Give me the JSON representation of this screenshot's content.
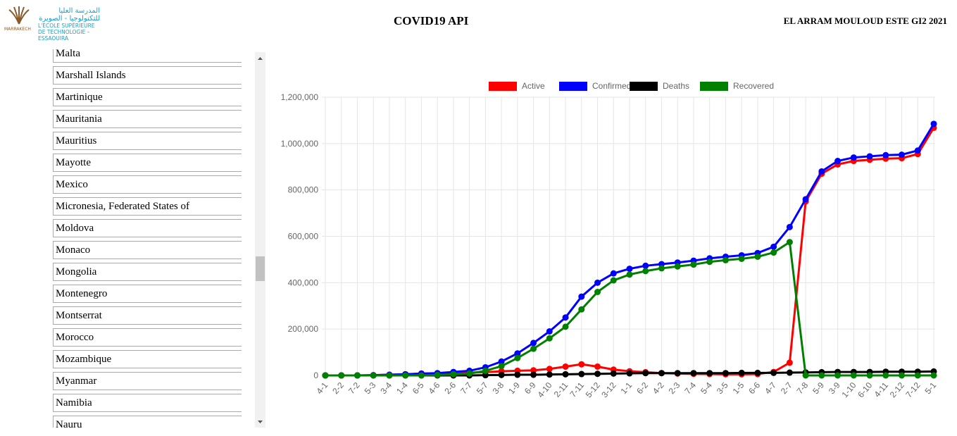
{
  "header": {
    "logo_arabic": "المدرسة العليا للتكنولوجيا - الصويرة",
    "logo_city": "MARRAKECH",
    "logo_school": "L'ÉCOLE SUPÉRIEURE DE TECHNOLOGIE – ESSAOUIRA",
    "title": "COVID19 API",
    "author": "EL ARRAM MOULOUD ESTE GI2 2021"
  },
  "sidebar": {
    "countries": [
      "Malta",
      "Marshall Islands",
      "Martinique",
      "Mauritania",
      "Mauritius",
      "Mayotte",
      "Mexico",
      "Micronesia, Federated States of",
      "Moldova",
      "Monaco",
      "Mongolia",
      "Montenegro",
      "Montserrat",
      "Morocco",
      "Mozambique",
      "Myanmar",
      "Namibia",
      "Nauru"
    ]
  },
  "chart_data": {
    "type": "line",
    "categories": [
      "4-1",
      "2-2",
      "7-2",
      "5-3",
      "3-4",
      "1-4",
      "6-5",
      "4-6",
      "2-6",
      "7-7",
      "5-7",
      "3-8",
      "1-9",
      "6-9",
      "4-10",
      "2-11",
      "7-11",
      "5-12",
      "3-12",
      "1-1",
      "6-2",
      "4-2",
      "2-3",
      "7-4",
      "5-4",
      "3-5",
      "1-5",
      "6-6",
      "4-7",
      "2-7",
      "7-8",
      "5-9",
      "3-9",
      "1-10",
      "6-10",
      "4-11",
      "2-12",
      "7-12",
      "5-1"
    ],
    "series": [
      {
        "name": "Active",
        "color": "#ff0000",
        "values": [
          0,
          0,
          0,
          1000,
          3000,
          5000,
          8000,
          8000,
          10000,
          12000,
          14000,
          18000,
          20000,
          22000,
          28000,
          38000,
          48000,
          38000,
          25000,
          18000,
          14000,
          10000,
          8000,
          7000,
          6000,
          5000,
          5000,
          6000,
          15000,
          55000,
          750000,
          870000,
          910000,
          925000,
          930000,
          935000,
          937000,
          955000,
          1068000
        ]
      },
      {
        "name": "Confirmed",
        "color": "#0000ff",
        "values": [
          0,
          0,
          0,
          1000,
          3000,
          5000,
          8000,
          10000,
          15000,
          20000,
          35000,
          60000,
          95000,
          140000,
          190000,
          250000,
          340000,
          400000,
          440000,
          460000,
          473000,
          480000,
          487000,
          495000,
          505000,
          512000,
          518000,
          528000,
          555000,
          640000,
          760000,
          880000,
          925000,
          940000,
          945000,
          950000,
          952000,
          970000,
          1085000
        ]
      },
      {
        "name": "Deaths",
        "color": "#000000",
        "values": [
          0,
          0,
          0,
          0,
          0,
          0,
          0,
          0,
          0,
          0,
          1000,
          2000,
          3000,
          3000,
          4000,
          5000,
          6000,
          7000,
          8000,
          9000,
          10000,
          10000,
          10000,
          10000,
          10000,
          10000,
          11000,
          11000,
          11000,
          12000,
          13000,
          14000,
          15000,
          15000,
          15000,
          16000,
          16000,
          16000,
          17000
        ]
      },
      {
        "name": "Recovered",
        "color": "#008000",
        "values": [
          0,
          0,
          0,
          0,
          0,
          0,
          0,
          2000,
          5000,
          8000,
          20000,
          40000,
          75000,
          115000,
          160000,
          210000,
          285000,
          360000,
          410000,
          435000,
          450000,
          462000,
          470000,
          478000,
          490000,
          497000,
          503000,
          512000,
          530000,
          575000,
          0,
          0,
          0,
          0,
          0,
          0,
          0,
          0,
          0
        ]
      }
    ],
    "ylim": [
      0,
      1200000
    ],
    "yticks": [
      0,
      {
        "value": 200000,
        "label": "200,000"
      },
      {
        "value": 400000,
        "label": "400,000"
      },
      {
        "value": 600000,
        "label": "600,000"
      },
      {
        "value": 800000,
        "label": "800,000"
      },
      {
        "value": 1000000,
        "label": "1,000,000"
      },
      {
        "value": 1200000,
        "label": "1,200,000"
      }
    ],
    "grid": true,
    "legend": "top"
  }
}
